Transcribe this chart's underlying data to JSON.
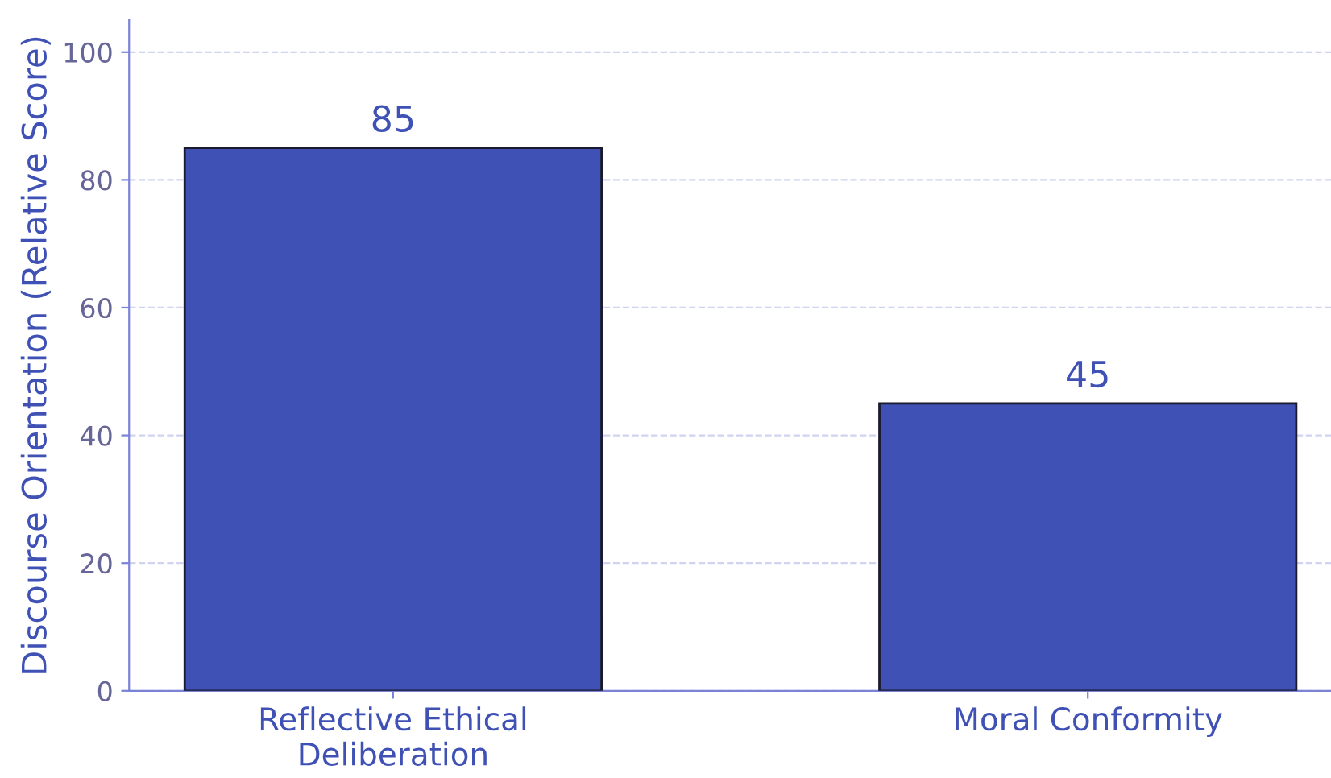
{
  "chart_data": {
    "type": "bar",
    "ylabel": "Discourse Orientation (Relative Score)",
    "categories": [
      "Reflective Ethical\nDeliberation",
      "Moral Conformity"
    ],
    "values": [
      85,
      45
    ],
    "color": "#3f51b5",
    "ylim": [
      0,
      105
    ],
    "yticks": [
      0,
      20,
      40,
      60,
      80,
      100
    ],
    "grid": "y",
    "data_labels": true
  }
}
